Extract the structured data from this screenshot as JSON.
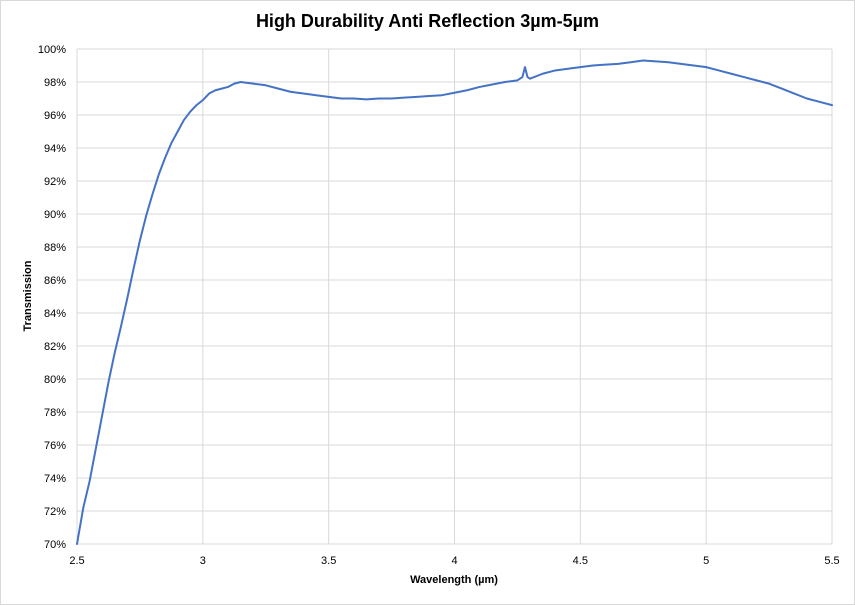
{
  "chart_data": {
    "type": "line",
    "title": "High Durability Anti Reflection 3µm-5µm",
    "xlabel": "Wavelength (µm)",
    "ylabel": "Transmission",
    "xlim": [
      2.5,
      5.5
    ],
    "ylim": [
      70,
      100
    ],
    "x_ticks": [
      2.5,
      3,
      3.5,
      4,
      4.5,
      5,
      5.5
    ],
    "x_tick_labels": [
      "2.5",
      "3",
      "3.5",
      "4",
      "4.5",
      "5",
      "5.5"
    ],
    "y_ticks": [
      70,
      72,
      74,
      76,
      78,
      80,
      82,
      84,
      86,
      88,
      90,
      92,
      94,
      96,
      98,
      100
    ],
    "y_tick_labels": [
      "70%",
      "72%",
      "74%",
      "76%",
      "78%",
      "80%",
      "82%",
      "84%",
      "86%",
      "88%",
      "90%",
      "92%",
      "94%",
      "96%",
      "98%",
      "100%"
    ],
    "grid": true,
    "legend": "none",
    "series": [
      {
        "color": "#4472c4",
        "x": [
          2.5,
          2.525,
          2.55,
          2.575,
          2.6,
          2.625,
          2.65,
          2.675,
          2.7,
          2.725,
          2.75,
          2.775,
          2.8,
          2.825,
          2.85,
          2.875,
          2.9,
          2.925,
          2.95,
          2.975,
          3.0,
          3.025,
          3.05,
          3.075,
          3.1,
          3.125,
          3.15,
          3.2,
          3.25,
          3.3,
          3.35,
          3.4,
          3.45,
          3.5,
          3.55,
          3.6,
          3.65,
          3.7,
          3.75,
          3.8,
          3.85,
          3.9,
          3.95,
          4.0,
          4.05,
          4.1,
          4.15,
          4.2,
          4.25,
          4.27,
          4.28,
          4.29,
          4.3,
          4.35,
          4.4,
          4.45,
          4.5,
          4.55,
          4.6,
          4.65,
          4.7,
          4.75,
          4.8,
          4.85,
          4.9,
          4.95,
          5.0,
          5.05,
          5.1,
          5.15,
          5.2,
          5.25,
          5.3,
          5.35,
          5.4,
          5.45,
          5.5
        ],
        "y": [
          70.0,
          72.2,
          73.8,
          75.8,
          77.8,
          79.8,
          81.6,
          83.2,
          84.9,
          86.7,
          88.4,
          89.9,
          91.2,
          92.4,
          93.4,
          94.3,
          95.0,
          95.7,
          96.2,
          96.6,
          96.9,
          97.3,
          97.5,
          97.6,
          97.7,
          97.9,
          98.0,
          97.9,
          97.8,
          97.6,
          97.4,
          97.3,
          97.2,
          97.1,
          97.0,
          97.0,
          96.95,
          97.0,
          97.0,
          97.05,
          97.1,
          97.15,
          97.2,
          97.35,
          97.5,
          97.7,
          97.85,
          98.0,
          98.1,
          98.3,
          98.9,
          98.3,
          98.2,
          98.5,
          98.7,
          98.8,
          98.9,
          99.0,
          99.05,
          99.1,
          99.2,
          99.3,
          99.25,
          99.2,
          99.1,
          99.0,
          98.9,
          98.7,
          98.5,
          98.3,
          98.1,
          97.9,
          97.6,
          97.3,
          97.0,
          96.8,
          96.6
        ]
      }
    ]
  }
}
